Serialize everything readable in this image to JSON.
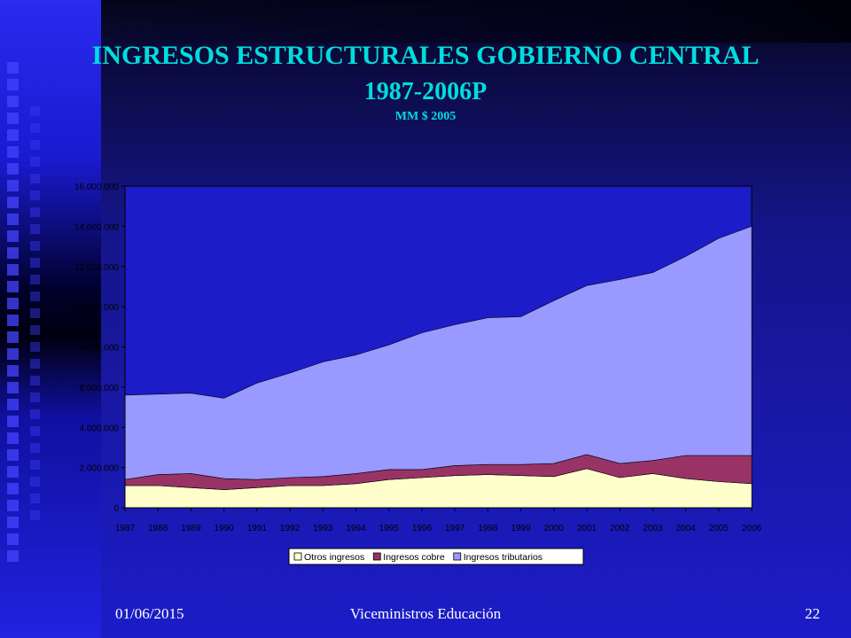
{
  "slide": {
    "title_line1": "INGRESOS ESTRUCTURALES GOBIERNO CENTRAL",
    "title_line2": "1987-2006P",
    "subtitle": "MM $ 2005",
    "footer_date": "01/06/2015",
    "footer_center": "Viceministros Educación",
    "page_number": "22"
  },
  "colors": {
    "otros": "#FFFFCC",
    "cobre": "#993366",
    "tributarios": "#9999FF",
    "plot_background": "#1C1CC8",
    "title": "#00DDDD"
  },
  "chart_data": {
    "type": "area",
    "stacked": true,
    "x": [
      "1987",
      "1988",
      "1989",
      "1990",
      "1991",
      "1992",
      "1993",
      "1994",
      "1995",
      "1996",
      "1997",
      "1998",
      "1999",
      "2000",
      "2001",
      "2002",
      "2003",
      "2004",
      "2005",
      "2006"
    ],
    "y_ticks": [
      "0",
      "2.000.000",
      "4.000.000",
      "6.000.000",
      "8.000.000",
      "10.000.000",
      "12.000.000",
      "14.000.000",
      "16.000.000"
    ],
    "ylim": [
      0,
      16000000
    ],
    "legend_position": "bottom",
    "grid": false,
    "series": [
      {
        "name": "Otros ingresos",
        "color": "#FFFFCC",
        "values": [
          1100000,
          1100000,
          1000000,
          900000,
          1000000,
          1100000,
          1100000,
          1200000,
          1400000,
          1500000,
          1600000,
          1650000,
          1600000,
          1550000,
          1950000,
          1500000,
          1700000,
          1450000,
          1300000,
          1200000
        ]
      },
      {
        "name": "Ingresos cobre",
        "color": "#993366",
        "values": [
          300000,
          550000,
          700000,
          550000,
          400000,
          400000,
          450000,
          500000,
          500000,
          400000,
          500000,
          500000,
          550000,
          650000,
          700000,
          700000,
          650000,
          1150000,
          1300000,
          1400000
        ]
      },
      {
        "name": "Ingresos tributarios",
        "color": "#9999FF",
        "values": [
          4200000,
          4000000,
          4000000,
          4000000,
          4800000,
          5200000,
          5700000,
          5900000,
          6200000,
          6800000,
          7000000,
          7300000,
          7350000,
          8100000,
          8400000,
          9150000,
          9350000,
          9900000,
          10800000,
          11400000
        ]
      }
    ]
  }
}
